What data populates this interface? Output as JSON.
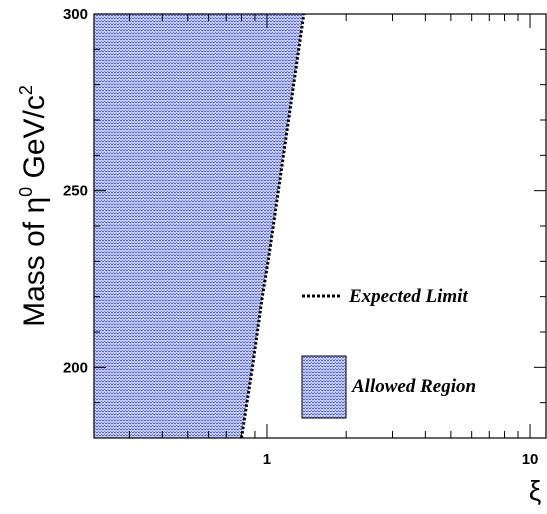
{
  "chart_data": {
    "type": "area",
    "xlabel": "ξ",
    "ylabel_main": "Mass of η",
    "ylabel_sup": "0",
    "ylabel_unit": " GeV/c",
    "ylabel_unit_sup": "2",
    "x_scale": "log",
    "xlim": [
      0.22,
      11.5
    ],
    "ylim": [
      180,
      300
    ],
    "x_ticks": [
      {
        "value": 1,
        "label": "1"
      },
      {
        "value": 10,
        "label": "10"
      }
    ],
    "y_ticks": [
      {
        "value": 200,
        "label": "200"
      },
      {
        "value": 250,
        "label": "250"
      },
      {
        "value": 300,
        "label": "300"
      }
    ],
    "series": [
      {
        "name": "Expected Limit",
        "style": "dotted",
        "color": "#000000",
        "points": [
          [
            0.8,
            180
          ],
          [
            0.88,
            200
          ],
          [
            0.96,
            220
          ],
          [
            1.02,
            232
          ],
          [
            1.38,
            300
          ]
        ]
      }
    ],
    "allowed_region": {
      "name": "Allowed Region",
      "fill_color": "#a6b0e6",
      "hatch_color": "#5a6ad4",
      "boundary": [
        [
          0.8,
          180
        ],
        [
          0.88,
          200
        ],
        [
          0.96,
          220
        ],
        [
          1.02,
          232
        ],
        [
          1.38,
          300
        ]
      ]
    },
    "legend": {
      "placement": "bottom-right",
      "entries": [
        {
          "label": "Expected Limit",
          "kind": "line"
        },
        {
          "label": "Allowed Region",
          "kind": "box"
        }
      ]
    },
    "grid": false
  }
}
